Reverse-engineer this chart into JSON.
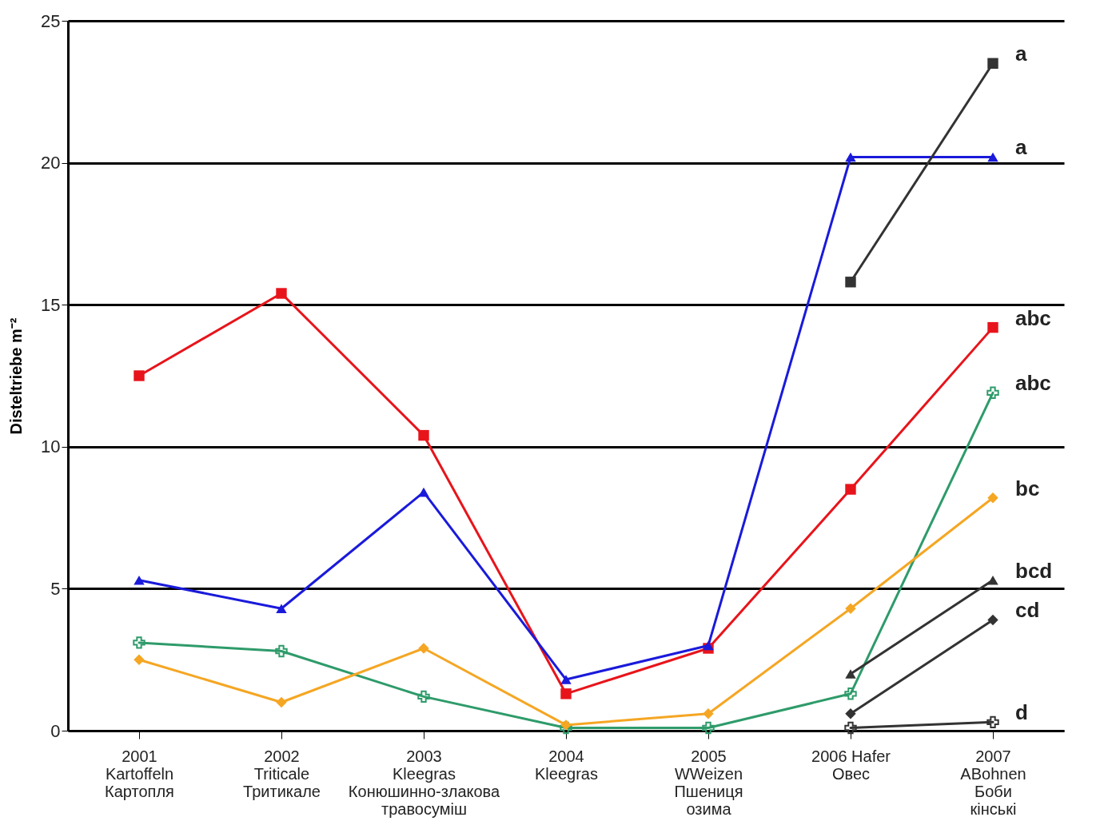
{
  "chart_data": {
    "type": "line",
    "ylabel": "Disteltriebe m⁻²",
    "categories": [
      "2001\nKartoffeln\nКартопля",
      "2002\nTriticale\nТритикале",
      "2003\nKleegras\nКонюшинно-злакова\nтравосуміш",
      "2004\nKleegras",
      "2005\nWWeizen\nПшениця\nозима",
      "2006 Hafer\nОвес",
      "2007\nABohnen\nБоби\nкінські"
    ],
    "series": [
      {
        "color": "#e8141b",
        "marker": "square",
        "values": [
          12.5,
          15.4,
          10.4,
          1.3,
          2.9,
          8.5,
          14.2
        ]
      },
      {
        "color": "#1a1adb",
        "marker": "triangle",
        "values": [
          5.3,
          4.3,
          8.4,
          1.8,
          3.0,
          20.2,
          20.2
        ]
      },
      {
        "color": "#2e9b6a",
        "marker": "cross",
        "values": [
          3.1,
          2.8,
          1.2,
          0.1,
          0.1,
          1.3,
          11.9
        ]
      },
      {
        "color": "#f5a623",
        "marker": "diamond",
        "values": [
          2.5,
          1.0,
          2.9,
          0.2,
          0.6,
          4.3,
          8.2
        ]
      },
      {
        "color": "#333333",
        "marker": "square",
        "values": [
          null,
          null,
          null,
          null,
          null,
          15.8,
          23.5
        ]
      },
      {
        "color": "#333333",
        "marker": "triangle",
        "values": [
          null,
          null,
          null,
          null,
          null,
          2.0,
          5.3
        ]
      },
      {
        "color": "#333333",
        "marker": "diamond",
        "values": [
          null,
          null,
          null,
          null,
          null,
          0.6,
          3.9
        ]
      },
      {
        "color": "#333333",
        "marker": "cross",
        "values": [
          null,
          null,
          null,
          null,
          null,
          0.1,
          0.3
        ]
      }
    ],
    "annotations": [
      {
        "text": "a",
        "x": "2007\nABohnen\nБоби\nкінські",
        "y": 23.5
      },
      {
        "text": "a",
        "x": "2007\nABohnen\nБоби\nкінські",
        "y": 20.2
      },
      {
        "text": "abc",
        "x": "2007\nABohnen\nБоби\nкінські",
        "y": 14.2
      },
      {
        "text": "abc",
        "x": "2007\nABohnen\nБоби\nкінські",
        "y": 11.9
      },
      {
        "text": "bc",
        "x": "2007\nABohnen\nБоби\nкінські",
        "y": 8.2
      },
      {
        "text": "bcd",
        "x": "2007\nABohnen\nБоби\nкінські",
        "y": 5.3
      },
      {
        "text": "cd",
        "x": "2007\nABohnen\nБоби\nкінські",
        "y": 3.9
      },
      {
        "text": "d",
        "x": "2007\nABohnen\nБоби\nкінські",
        "y": 0.3
      }
    ],
    "ylim": [
      0,
      25
    ],
    "yticks": [
      0,
      5,
      10,
      15,
      20,
      25
    ],
    "grid": "y"
  }
}
